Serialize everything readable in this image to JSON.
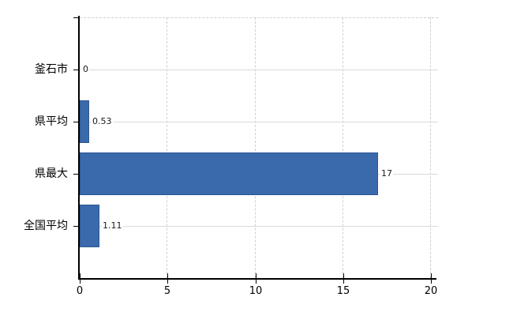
{
  "chart_data": {
    "type": "bar",
    "orientation": "horizontal",
    "title": "",
    "categories": [
      "釜石市",
      "県平均",
      "県最大",
      "全国平均"
    ],
    "values": [
      0,
      0.53,
      17,
      1.11
    ],
    "value_labels": [
      "0",
      "0.53",
      "17",
      "1.11"
    ],
    "xlabel": "",
    "ylabel": "",
    "xlim": [
      0,
      20
    ],
    "x_tick_values": [
      0,
      5,
      10,
      15,
      20
    ],
    "x_tick_labels": [
      "0",
      "5",
      "10",
      "15",
      "20"
    ],
    "grid": "vertical dashed gridlines at x ticks; horizontal solid gridlines at category centers; dashed top border",
    "legend": false,
    "colors": {
      "bar_fill": "#3a6aab",
      "bar_border": "#2c5892",
      "grid_horizontal": "#d6ddd6",
      "grid_vertical": "#d3ced3",
      "axis": "#000000",
      "text": "#000000",
      "background": "#ffffff"
    }
  }
}
